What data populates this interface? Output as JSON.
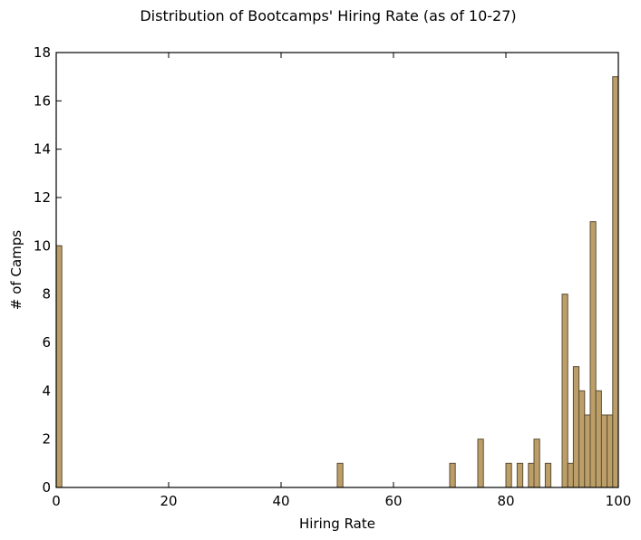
{
  "chart_data": {
    "type": "bar",
    "title": "Distribution of Bootcamps' Hiring Rate (as of 10-27)",
    "xlabel": "Hiring Rate",
    "ylabel": "# of Camps",
    "xlim": [
      0,
      100
    ],
    "ylim": [
      0,
      18
    ],
    "bin_width": 1,
    "x_ticks": [
      0,
      20,
      40,
      60,
      80,
      100
    ],
    "y_ticks": [
      0,
      2,
      4,
      6,
      8,
      10,
      12,
      14,
      16,
      18
    ],
    "bar_color": "#bc9f68",
    "bar_edge_color": "#5c4d33",
    "grid": false,
    "bins": [
      {
        "x": 0,
        "value": 10
      },
      {
        "x": 50,
        "value": 1
      },
      {
        "x": 70,
        "value": 1
      },
      {
        "x": 75,
        "value": 2
      },
      {
        "x": 80,
        "value": 1
      },
      {
        "x": 82,
        "value": 1
      },
      {
        "x": 84,
        "value": 1
      },
      {
        "x": 85,
        "value": 2
      },
      {
        "x": 87,
        "value": 1
      },
      {
        "x": 90,
        "value": 8
      },
      {
        "x": 91,
        "value": 1
      },
      {
        "x": 92,
        "value": 5
      },
      {
        "x": 93,
        "value": 4
      },
      {
        "x": 94,
        "value": 3
      },
      {
        "x": 95,
        "value": 11
      },
      {
        "x": 96,
        "value": 4
      },
      {
        "x": 97,
        "value": 3
      },
      {
        "x": 98,
        "value": 3
      },
      {
        "x": 99,
        "value": 17
      }
    ]
  }
}
